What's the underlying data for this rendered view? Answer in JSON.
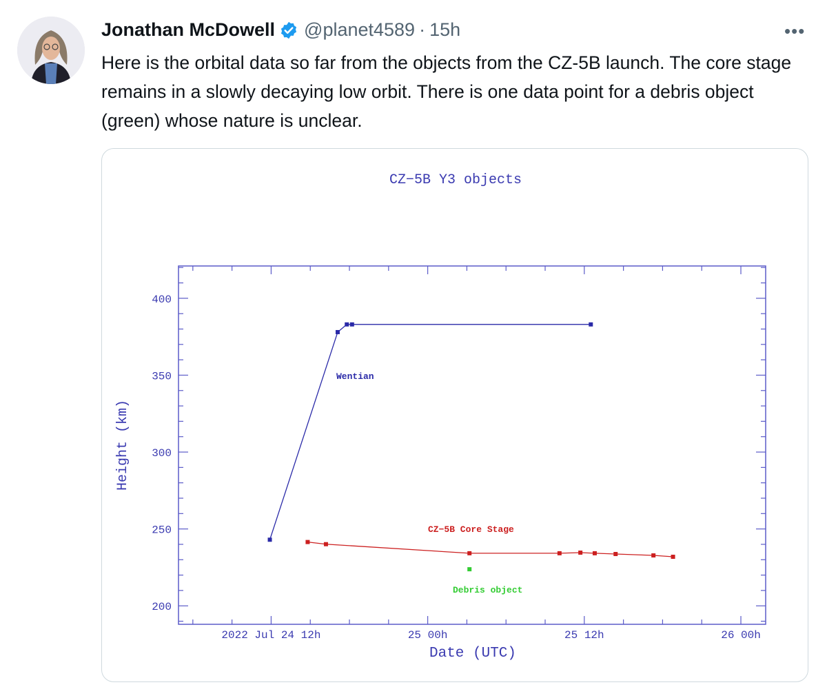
{
  "tweet": {
    "author_name": "Jonathan McDowell",
    "handle": "@planet4589",
    "separator": "·",
    "time": "15h",
    "more_label": "•••",
    "text": "Here is the orbital data so far from the objects from the CZ-5B launch. The core stage remains in a slowly decaying low orbit. There is one data point for a debris object (green)  whose nature is unclear.",
    "verified_color": "#1d9bf0"
  },
  "chart_data": {
    "type": "scatter",
    "title": "CZ−5B Y3 objects",
    "xlabel": "Date (UTC)",
    "ylabel": "Height (km)",
    "x_units": "hours since 2022 Jul 24 00h UTC",
    "xlim": [
      4.9,
      49.9
    ],
    "ylim": [
      188,
      421
    ],
    "x_ticks": [
      {
        "value": 12,
        "label": "2022 Jul 24  12h"
      },
      {
        "value": 24,
        "label": "25  00h"
      },
      {
        "value": 36,
        "label": "25  12h"
      },
      {
        "value": 48,
        "label": "26  00h"
      }
    ],
    "y_ticks": [
      200,
      250,
      300,
      350,
      400
    ],
    "grid": false,
    "series": [
      {
        "name": "Wentian",
        "color": "#2a2aa8",
        "connected": true,
        "x": [
          11.9,
          17.1,
          17.8,
          18.2,
          36.5
        ],
        "y": [
          243,
          378,
          383,
          383,
          383
        ]
      },
      {
        "name": "CZ−5B Core Stage",
        "color": "#cc2020",
        "connected": true,
        "x": [
          14.8,
          16.2,
          27.2,
          34.1,
          35.7,
          36.8,
          38.4,
          41.3,
          42.8
        ],
        "y": [
          241.5,
          240.1,
          234.2,
          234.2,
          234.6,
          234.2,
          233.7,
          232.8,
          231.9
        ]
      },
      {
        "name": "Debris object",
        "color": "#33cc33",
        "connected": false,
        "x": [
          27.2
        ],
        "y": [
          223.8
        ]
      }
    ],
    "axis_color": "#5a5ac8"
  }
}
